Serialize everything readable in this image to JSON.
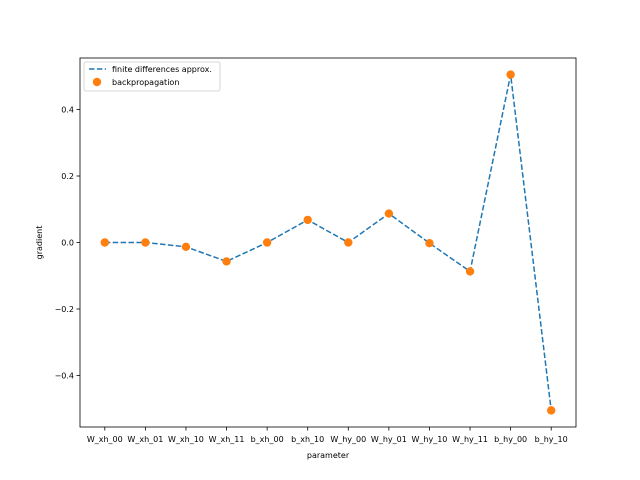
{
  "chart_data": {
    "type": "line",
    "title": "",
    "xlabel": "parameter",
    "ylabel": "gradient",
    "categories": [
      "W_xh_00",
      "W_xh_01",
      "W_xh_10",
      "W_xh_11",
      "b_xh_00",
      "b_xh_10",
      "W_hy_00",
      "W_hy_01",
      "W_hy_10",
      "W_hy_11",
      "b_hy_00",
      "b_hy_10"
    ],
    "series": [
      {
        "name": "finite differences approx.",
        "style": "dashed-line",
        "color": "#1f77b4",
        "values": [
          0.0,
          0.0,
          -0.013,
          -0.057,
          0.0,
          0.068,
          0.0,
          0.087,
          -0.002,
          -0.087,
          0.505,
          -0.505
        ]
      },
      {
        "name": "backpropagation",
        "style": "markers",
        "color": "#ff7f0e",
        "values": [
          0.0,
          0.0,
          -0.013,
          -0.057,
          0.0,
          0.068,
          0.0,
          0.087,
          -0.002,
          -0.087,
          0.505,
          -0.505
        ]
      }
    ],
    "ylim": [
      -0.555,
      0.555
    ],
    "yticks": [
      -0.4,
      -0.2,
      0.0,
      0.2,
      0.4
    ],
    "ytick_labels": [
      "−0.4",
      "−0.2",
      "0.0",
      "0.2",
      "0.4"
    ],
    "legend_position": "upper-left",
    "grid": false
  }
}
